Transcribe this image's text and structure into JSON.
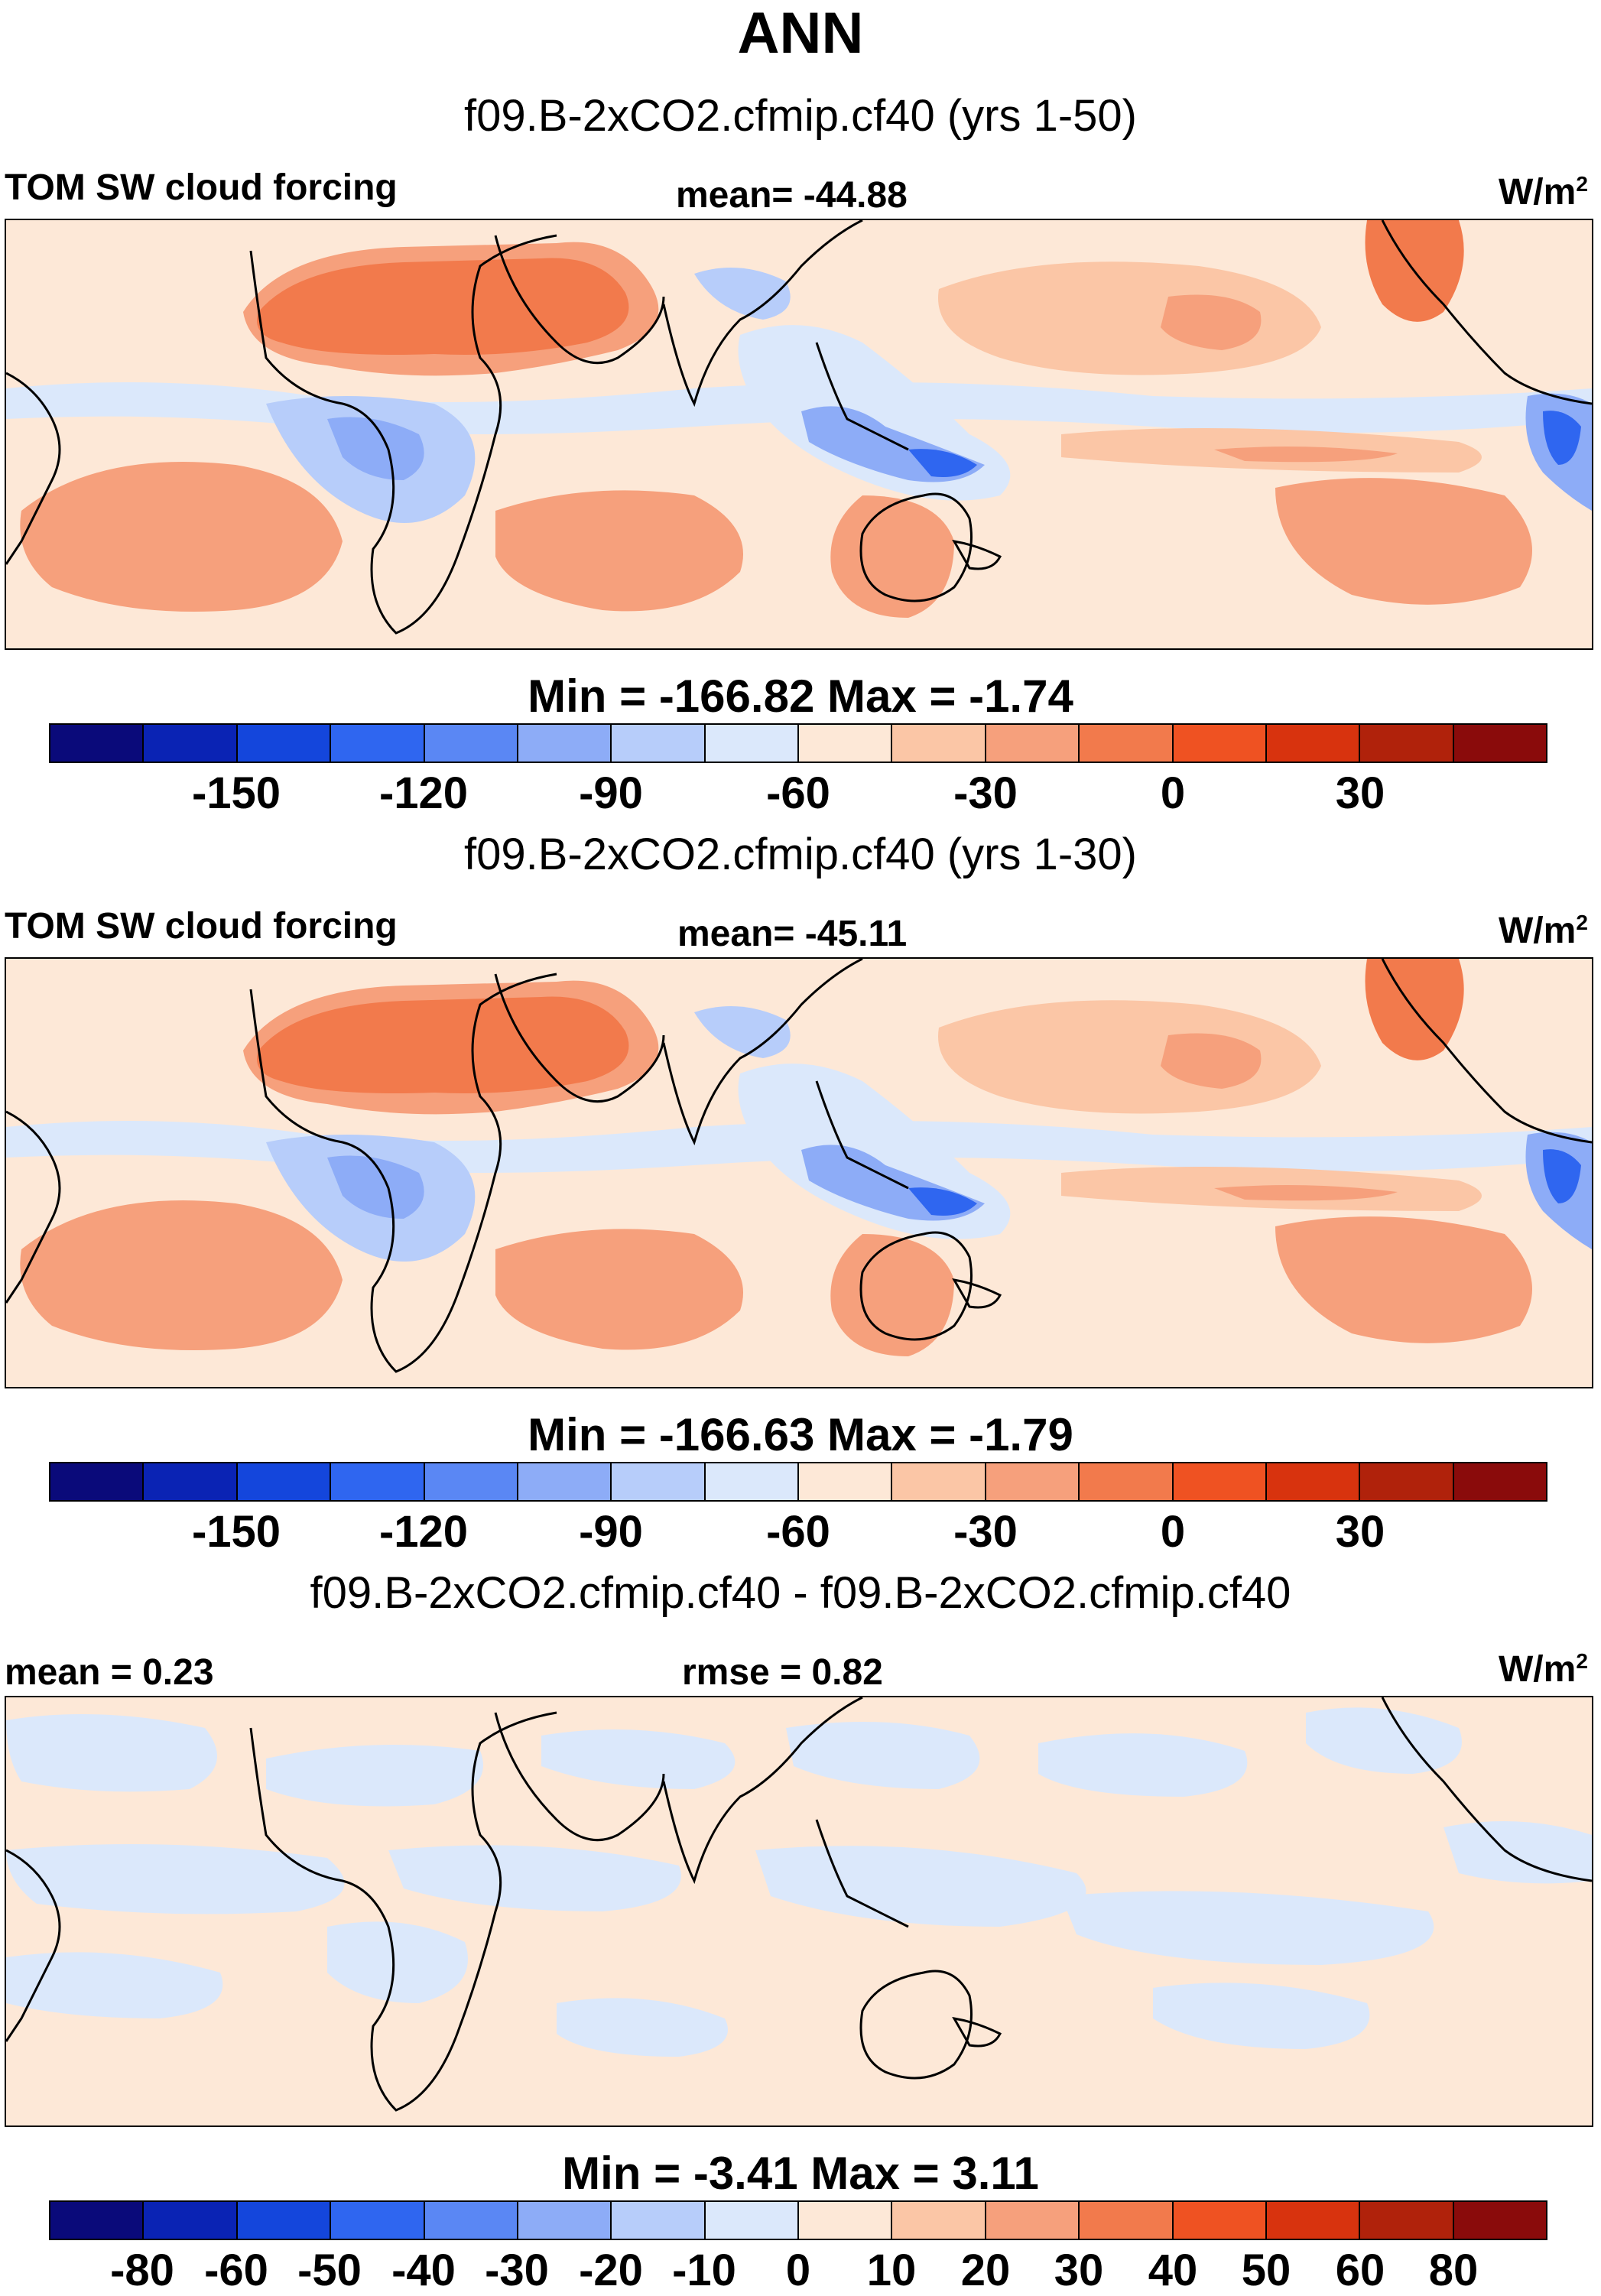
{
  "figure": {
    "title": "ANN"
  },
  "panels": [
    {
      "name": "f09.B-2xCO2.cfmip.cf40 (yrs 1-50)",
      "left_label": "TOM SW cloud forcing",
      "center_label": "mean= -44.88",
      "units_base": "W/m",
      "units_exp": "2",
      "minmax": "Min = -166.82 Max =  -1.74",
      "colorbar_ticks": [
        "-150",
        "-120",
        "-90",
        "-60",
        "-30",
        "0",
        "30"
      ]
    },
    {
      "name": "f09.B-2xCO2.cfmip.cf40 (yrs 1-30)",
      "left_label": "TOM SW cloud forcing",
      "center_label": "mean= -45.11",
      "units_base": "W/m",
      "units_exp": "2",
      "minmax": "Min = -166.63 Max =  -1.79",
      "colorbar_ticks": [
        "-150",
        "-120",
        "-90",
        "-60",
        "-30",
        "0",
        "30"
      ]
    },
    {
      "name": "f09.B-2xCO2.cfmip.cf40 - f09.B-2xCO2.cfmip.cf40",
      "left_label": "mean =   0.23",
      "center_label": "rmse =   0.82",
      "units_base": "W/m",
      "units_exp": "2",
      "minmax": "Min =  -3.41 Max =   3.11",
      "colorbar_ticks": [
        "-80",
        "-60",
        "-50",
        "-40",
        "-30",
        "-20",
        "-10",
        "0",
        "10",
        "20",
        "30",
        "40",
        "50",
        "60",
        "80"
      ]
    }
  ],
  "colors": {
    "colorbar": [
      "#0a0a7a",
      "#0a23b4",
      "#1446dc",
      "#2f66f0",
      "#5a87f4",
      "#8dacf7",
      "#b7cdfa",
      "#dbe8fb",
      "#fde8d7",
      "#fbc6a6",
      "#f6a07c",
      "#f27a4c",
      "#ef5222",
      "#d8330e",
      "#b0220b",
      "#8a0b0b"
    ],
    "land_outline": "#000000"
  }
}
